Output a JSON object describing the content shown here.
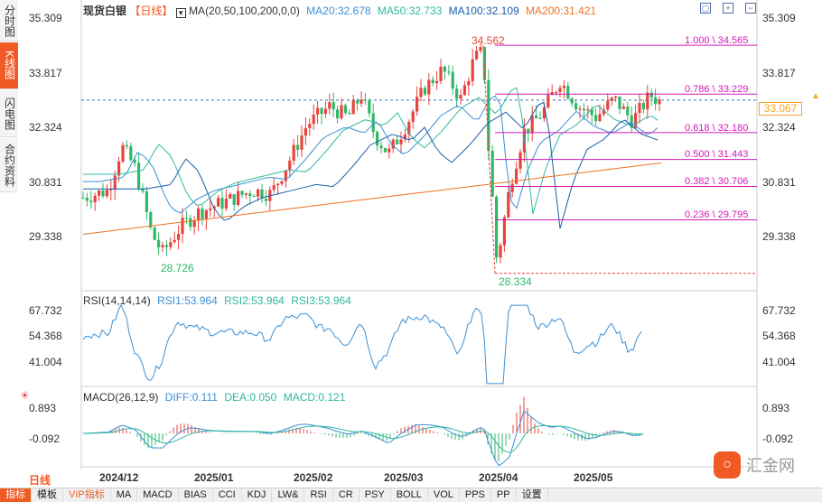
{
  "sidebar": {
    "tabs": [
      {
        "label": "分时图"
      },
      {
        "label": "K线图",
        "active": true
      },
      {
        "label": "闪电图"
      },
      {
        "label": "合约资料"
      }
    ]
  },
  "header": {
    "symbol": "现货白银",
    "period": "【日线】",
    "ma_title": "MA(20,50,100,200,0,0)",
    "ma20": "MA20:32.678",
    "ma50": "MA50:32.733",
    "ma100": "MA100:32.109",
    "ma200": "MA200:31.421"
  },
  "colors": {
    "up": "#e8433d",
    "down": "#2fb867",
    "ma20": "#3a8fd6",
    "ma50": "#2fb8a0",
    "ma100": "#1a5ea8",
    "ma200": "#f07020",
    "fib": "#d01ab8",
    "brand": "#f05a24"
  },
  "price_axis": {
    "ticks": [
      "35.309",
      "33.817",
      "32.324",
      "30.831",
      "29.338"
    ],
    "current": "33.067"
  },
  "annotations": {
    "high": "34.562",
    "low": "28.334",
    "prev_low": "28.726"
  },
  "fib_levels": [
    {
      "label": "1.000 \\ 34.565"
    },
    {
      "label": "0.786 \\ 33.229"
    },
    {
      "label": "0.618 \\ 32.180"
    },
    {
      "label": "0.500 \\ 31.443"
    },
    {
      "label": "0.382 \\ 30.706"
    },
    {
      "label": "0.236 \\ 29.795"
    }
  ],
  "rsi": {
    "title": "RSI(14,14,14)",
    "rsi1": "RSI1:53.964",
    "rsi2": "RSI2:53.964",
    "rsi3": "RSI3:53.964",
    "ticks": [
      "67.732",
      "54.368",
      "41.004"
    ]
  },
  "macd": {
    "title": "MACD(26,12,9)",
    "diff": "DIFF:0.111",
    "dea": "DEA:0.050",
    "macd": "MACD:0.121",
    "ticks": [
      "0.893",
      "-0.092"
    ]
  },
  "x_axis": {
    "period_label": "日线",
    "months": [
      "2024/12",
      "2025/01",
      "2025/02",
      "2025/03",
      "2025/04",
      "2025/05"
    ]
  },
  "watermark": "汇金网",
  "toolbar": {
    "items": [
      {
        "label": "指标",
        "active": true
      },
      {
        "label": "模板"
      },
      {
        "label": "VIP指标",
        "vip": true
      },
      {
        "label": "MA"
      },
      {
        "label": "MACD"
      },
      {
        "label": "BIAS"
      },
      {
        "label": "CCI"
      },
      {
        "label": "KDJ"
      },
      {
        "label": "LW&"
      },
      {
        "label": "RSI"
      },
      {
        "label": "CR"
      },
      {
        "label": "PSY"
      },
      {
        "label": "BOLL"
      },
      {
        "label": "VOL"
      },
      {
        "label": "PPS"
      },
      {
        "label": "PP"
      },
      {
        "label": "设置"
      }
    ]
  }
}
